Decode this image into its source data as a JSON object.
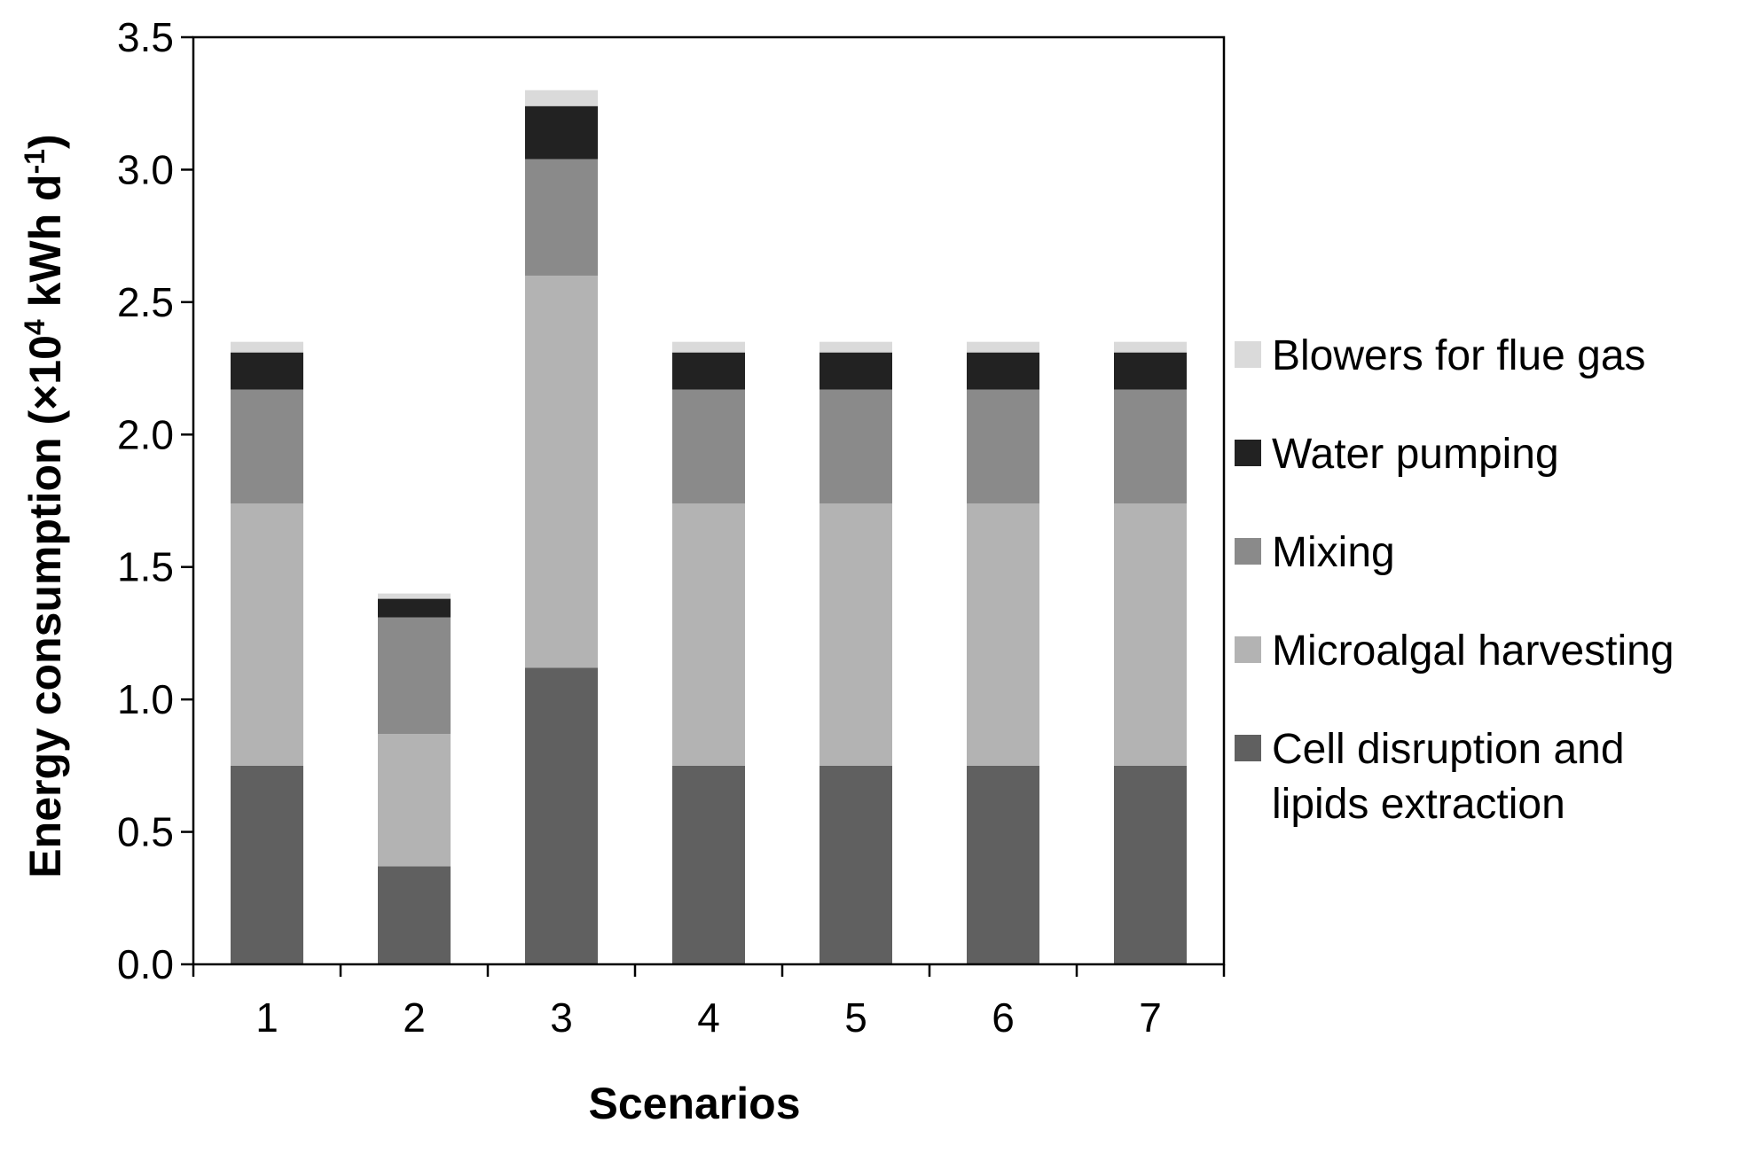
{
  "chart_data": {
    "type": "bar",
    "stacked": true,
    "title": "",
    "xlabel": "Scenarios",
    "ylabel": {
      "prefix": "Energy consumption (×10",
      "sup1": "4",
      "middle": " kWh d",
      "sup2": "-1",
      "suffix": ")"
    },
    "ylim": [
      0,
      3.5
    ],
    "ytick_labels": [
      "0.0",
      "0.5",
      "1.0",
      "1.5",
      "2.0",
      "2.5",
      "3.0",
      "3.5"
    ],
    "categories": [
      "1",
      "2",
      "3",
      "4",
      "5",
      "6",
      "7"
    ],
    "grid": false,
    "legend_position": "right",
    "series": [
      {
        "name": "Cell disruption and lipids extraction",
        "legend_lines": [
          "Cell disruption and",
          "lipids extraction"
        ],
        "color": "#606060",
        "values": [
          0.75,
          0.37,
          1.12,
          0.75,
          0.75,
          0.75,
          0.75
        ]
      },
      {
        "name": "Microalgal harvesting",
        "legend_lines": [
          "Microalgal harvesting"
        ],
        "color": "#b3b3b3",
        "values": [
          0.99,
          0.5,
          1.48,
          0.99,
          0.99,
          0.99,
          0.99
        ]
      },
      {
        "name": "Mixing",
        "legend_lines": [
          "Mixing"
        ],
        "color": "#8a8a8a",
        "values": [
          0.43,
          0.44,
          0.44,
          0.43,
          0.43,
          0.43,
          0.43
        ]
      },
      {
        "name": "Water pumping",
        "legend_lines": [
          "Water pumping"
        ],
        "color": "#222222",
        "values": [
          0.14,
          0.07,
          0.2,
          0.14,
          0.14,
          0.14,
          0.14
        ]
      },
      {
        "name": "Blowers for flue gas",
        "legend_lines": [
          "Blowers for flue gas"
        ],
        "color": "#dadada",
        "values": [
          0.04,
          0.02,
          0.06,
          0.04,
          0.04,
          0.04,
          0.04
        ]
      }
    ]
  }
}
